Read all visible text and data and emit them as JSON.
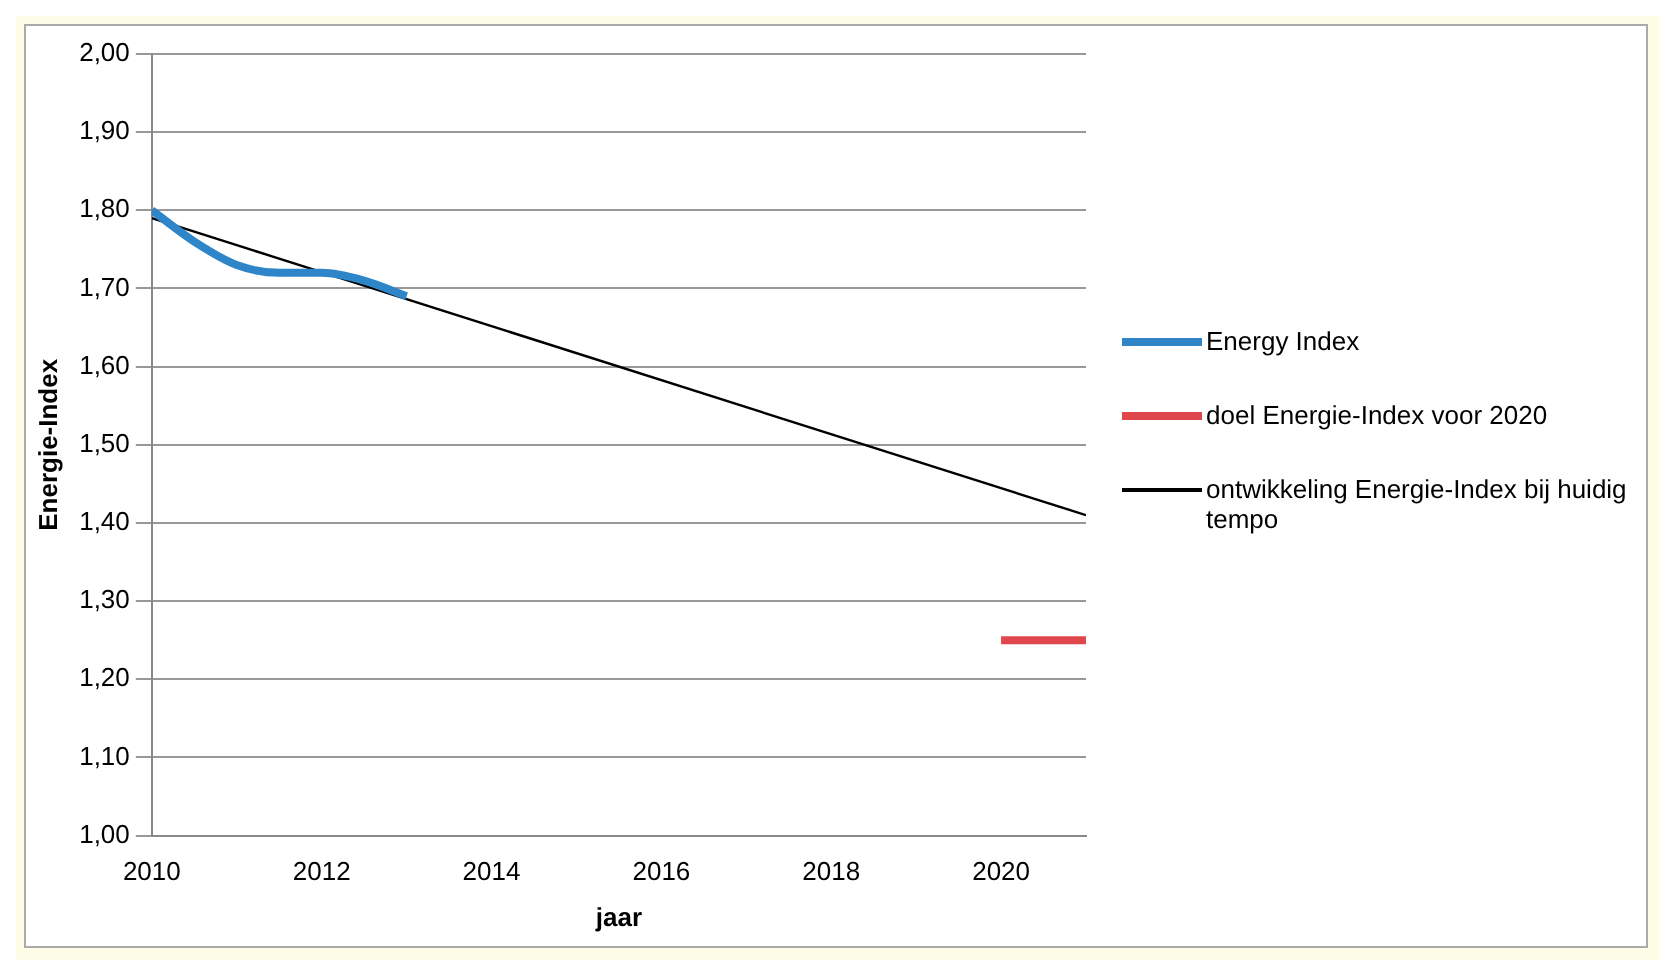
{
  "chart_data": {
    "type": "line",
    "xlabel": "jaar",
    "ylabel": "Energie-Index",
    "xlim": [
      2010,
      2021
    ],
    "xticks": [
      2010,
      2012,
      2014,
      2016,
      2018,
      2020
    ],
    "ylim": [
      1.0,
      2.0
    ],
    "yticks": [
      {
        "value": 1.0,
        "label": "1,00"
      },
      {
        "value": 1.1,
        "label": "1,10"
      },
      {
        "value": 1.2,
        "label": "1,20"
      },
      {
        "value": 1.3,
        "label": "1,30"
      },
      {
        "value": 1.4,
        "label": "1,40"
      },
      {
        "value": 1.5,
        "label": "1,50"
      },
      {
        "value": 1.6,
        "label": "1,60"
      },
      {
        "value": 1.7,
        "label": "1,70"
      },
      {
        "value": 1.8,
        "label": "1,80"
      },
      {
        "value": 1.9,
        "label": "1,90"
      },
      {
        "value": 2.0,
        "label": "2,00"
      }
    ],
    "grid": "y",
    "legend": "right",
    "marker": "none",
    "series": [
      {
        "name": "Energy Index",
        "color": "#2e86c8",
        "x": [
          2010,
          2010.5,
          2011,
          2011.5,
          2012,
          2012.5,
          2013
        ],
        "values": [
          1.8,
          1.76,
          1.73,
          1.72,
          1.72,
          1.71,
          1.69
        ]
      },
      {
        "name": "doel Energie-Index voor 2020",
        "color": "#e0474c",
        "x": [
          2020,
          2021
        ],
        "values": [
          1.25,
          1.25
        ]
      },
      {
        "name": "ontwikkeling Energie-Index bij huidig tempo",
        "color": "#000000",
        "x": [
          2010,
          2021
        ],
        "values": [
          1.79,
          1.41
        ]
      }
    ]
  }
}
